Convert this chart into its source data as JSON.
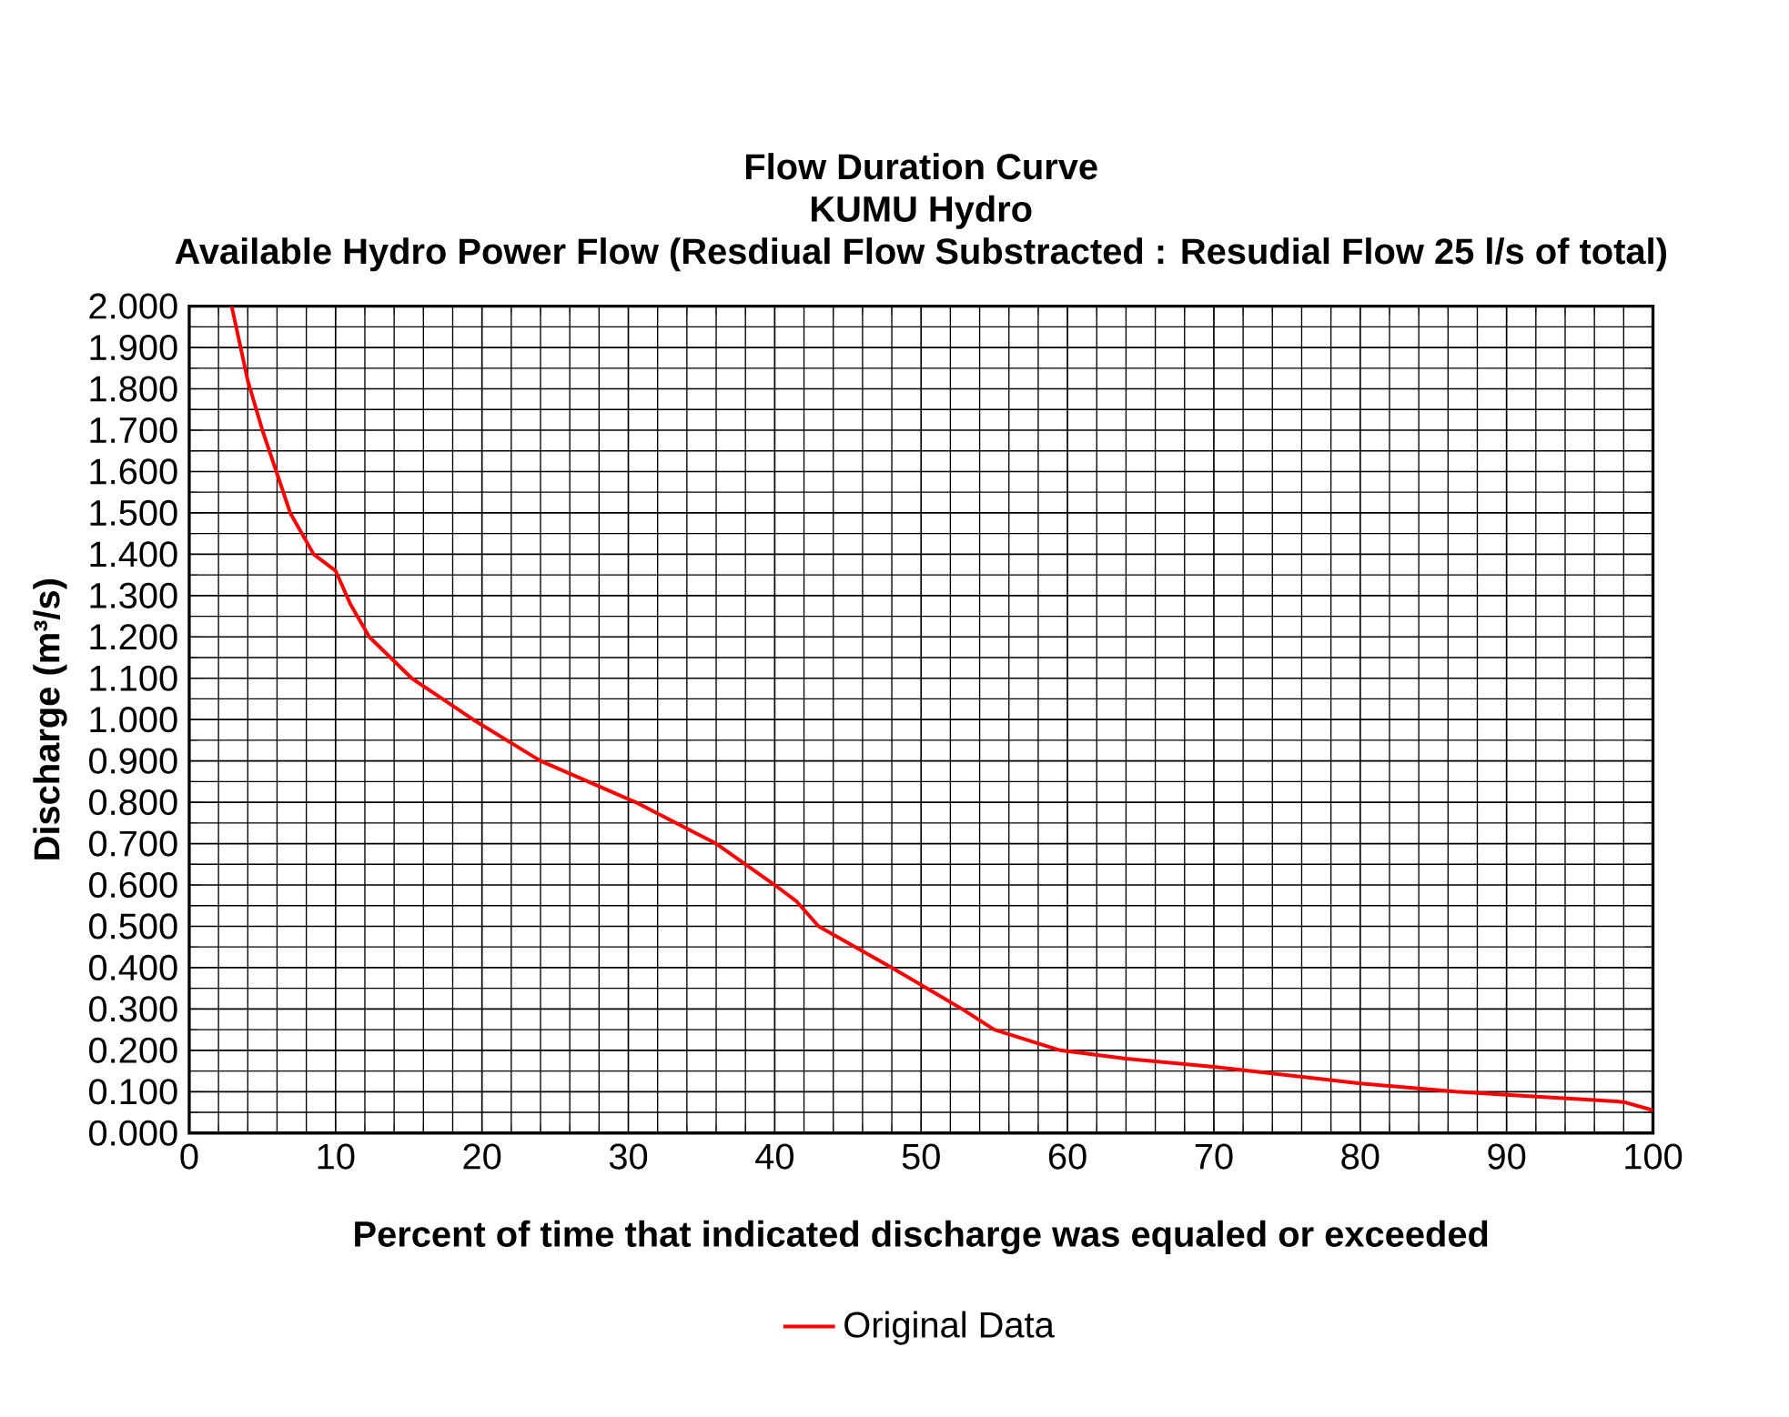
{
  "chart_data": {
    "type": "line",
    "title": "Flow Duration Curve",
    "subtitle": "KUMU Hydro",
    "annotations": [
      "Available Hydro Power Flow (Resdiual Flow Substracted : Resudial Flow 25 l/s of total)"
    ],
    "xlabel": "Percent of time that indicated discharge was equaled or exceeded",
    "ylabel": "Discharge (m³/s)",
    "xlim": [
      0,
      100
    ],
    "xticks": [
      0,
      10,
      20,
      30,
      40,
      50,
      60,
      70,
      80,
      90,
      100
    ],
    "ylim": [
      0,
      2
    ],
    "yticks": [
      {
        "value": 0,
        "label": "0.000"
      },
      {
        "value": 0.1,
        "label": "0.100"
      },
      {
        "value": 0.2,
        "label": "0.200"
      },
      {
        "value": 0.3,
        "label": "0.300"
      },
      {
        "value": 0.4,
        "label": "0.400"
      },
      {
        "value": 0.5,
        "label": "0.500"
      },
      {
        "value": 0.6,
        "label": "0.600"
      },
      {
        "value": 0.7,
        "label": "0.700"
      },
      {
        "value": 0.8,
        "label": "0.800"
      },
      {
        "value": 0.9,
        "label": "0.900"
      },
      {
        "value": 1.0,
        "label": "1.000"
      },
      {
        "value": 1.1,
        "label": "1.100"
      },
      {
        "value": 1.2,
        "label": "1.200"
      },
      {
        "value": 1.3,
        "label": "1.300"
      },
      {
        "value": 1.4,
        "label": "1.400"
      },
      {
        "value": 1.5,
        "label": "1.500"
      },
      {
        "value": 1.6,
        "label": "1.600"
      },
      {
        "value": 1.7,
        "label": "1.700"
      },
      {
        "value": 1.8,
        "label": "1.800"
      },
      {
        "value": 1.9,
        "label": "1.900"
      },
      {
        "value": 2.0,
        "label": "2.000"
      }
    ],
    "grid": true,
    "legend": "bottom",
    "marker": "none",
    "line_style": "solid",
    "series": [
      {
        "name": "Original Data",
        "color": "#ff0000",
        "x": [
          2.9,
          4.0,
          5.0,
          5.95,
          6.9,
          8.5,
          10.0,
          11.0,
          12.3,
          15.2,
          19.4,
          24.0,
          30.5,
          36.0,
          40.0,
          41.5,
          43.0,
          48.0,
          52.8,
          55.0,
          59.5,
          64.0,
          70.0,
          75.0,
          80.0,
          86.5,
          91.0,
          96.0,
          98.0,
          100.0
        ],
        "values": [
          2.0,
          1.82,
          1.7,
          1.6,
          1.5,
          1.4,
          1.36,
          1.28,
          1.2,
          1.1,
          1.0,
          0.9,
          0.8,
          0.7,
          0.6,
          0.56,
          0.5,
          0.4,
          0.3,
          0.25,
          0.2,
          0.18,
          0.16,
          0.14,
          0.12,
          0.1,
          0.09,
          0.08,
          0.075,
          0.055
        ]
      }
    ]
  }
}
